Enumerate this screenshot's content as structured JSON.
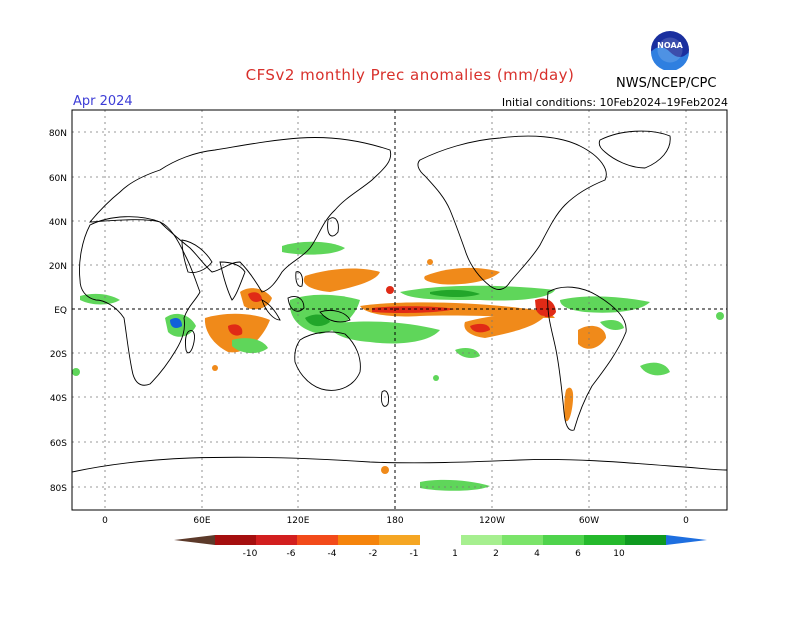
{
  "title": "CFSv2 monthly Prec anomalies (mm/day)",
  "month": "Apr 2024",
  "initial_conditions": "Initial conditions: 10Feb2024–19Feb2024",
  "agency": "NWS/NCEP/CPC",
  "logo_text": "NOAA",
  "lat_labels": [
    "80N",
    "60N",
    "40N",
    "20N",
    "EQ",
    "20S",
    "40S",
    "60S",
    "80S"
  ],
  "lon_labels": [
    "0",
    "60E",
    "120E",
    "180",
    "120W",
    "60W",
    "0"
  ],
  "colorbar": {
    "labels": [
      "-10",
      "-6",
      "-4",
      "-2",
      "-1",
      "1",
      "2",
      "4",
      "6",
      "10"
    ],
    "colors": [
      "#5c3a2a",
      "#a50f0f",
      "#d21f1f",
      "#f24a1a",
      "#f5840c",
      "#f5a623",
      "#ffffff",
      "#a6ef8f",
      "#7be46a",
      "#4fd34c",
      "#25b92c",
      "#0f9a20",
      "#1e6fe0"
    ]
  },
  "colors": {
    "dry_strong": "#e02a16",
    "dry": "#f08a1a",
    "wet": "#5fd65a",
    "wet_strong": "#22a62a",
    "very_wet": "#1060d8"
  }
}
